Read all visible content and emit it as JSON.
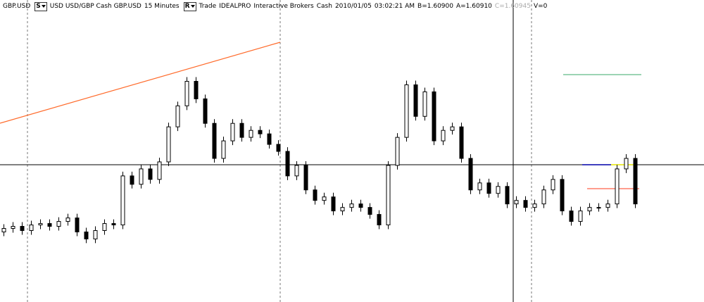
{
  "header": {
    "symbol": "GBP.USD",
    "side_button": "S",
    "description": "USD USD/GBP Cash GBP.USD",
    "interval": "15 Minutes",
    "route_button": "R",
    "mode": "Trade",
    "exchange": "IDEALPRO",
    "broker": "Interactive Brokers",
    "sec_type": "Cash",
    "date": "2010/01/05",
    "time": "03:02:21 AM",
    "bid": "B=1.60900",
    "ask": "A=1.60910",
    "close": "C=1.60945",
    "volume": "V=0"
  },
  "chart_data": {
    "type": "candlestick",
    "ylim": [
      1.6021,
      1.6229
    ],
    "up_color": "#ffffff",
    "down_color": "#000000",
    "open": [
      1.6071,
      1.60735,
      1.6075,
      1.6072,
      1.6076,
      1.6077,
      1.6075,
      1.60785,
      1.6081,
      1.6071,
      1.6066,
      1.6072,
      1.6077,
      1.6076,
      1.6111,
      1.6105,
      1.6116,
      1.61085,
      1.6121,
      1.6146,
      1.6161,
      1.61785,
      1.6166,
      1.61485,
      1.61235,
      1.6136,
      1.61485,
      1.61385,
      1.61435,
      1.6141,
      1.61335,
      1.61285,
      1.6111,
      1.61185,
      1.6101,
      1.60935,
      1.6096,
      1.6086,
      1.60885,
      1.6091,
      1.60885,
      1.60835,
      1.6076,
      1.61185,
      1.61385,
      1.6176,
      1.61535,
      1.6171,
      1.6136,
      1.61435,
      1.6146,
      1.61235,
      1.6101,
      1.6106,
      1.60985,
      1.61035,
      1.6091,
      1.60935,
      1.60885,
      1.6091,
      1.6101,
      1.61085,
      1.6086,
      1.60785,
      1.6086,
      1.60885,
      1.60885,
      1.6091,
      1.6116,
      1.61235
    ],
    "high": [
      1.60765,
      1.6078,
      1.6078,
      1.6079,
      1.608,
      1.608,
      1.60815,
      1.6084,
      1.6084,
      1.6074,
      1.6075,
      1.608,
      1.608,
      1.6114,
      1.6114,
      1.6119,
      1.6119,
      1.6124,
      1.6149,
      1.6164,
      1.61815,
      1.61815,
      1.6169,
      1.61515,
      1.6139,
      1.61515,
      1.61515,
      1.61465,
      1.61465,
      1.6144,
      1.61365,
      1.61315,
      1.61215,
      1.61215,
      1.6104,
      1.6099,
      1.6099,
      1.60915,
      1.6094,
      1.6094,
      1.60915,
      1.60865,
      1.61215,
      1.61415,
      1.6179,
      1.6179,
      1.6174,
      1.6174,
      1.61465,
      1.6149,
      1.6149,
      1.61265,
      1.6109,
      1.6109,
      1.61065,
      1.61065,
      1.60965,
      1.60965,
      1.6094,
      1.6104,
      1.61115,
      1.61115,
      1.6089,
      1.6089,
      1.60915,
      1.60915,
      1.6094,
      1.6119,
      1.61265,
      1.61265
    ],
    "low": [
      1.6068,
      1.60705,
      1.6069,
      1.6069,
      1.6073,
      1.6072,
      1.6072,
      1.60755,
      1.6068,
      1.6063,
      1.6063,
      1.6069,
      1.6073,
      1.6073,
      1.6102,
      1.6102,
      1.61055,
      1.61055,
      1.6118,
      1.6143,
      1.6158,
      1.6163,
      1.61455,
      1.61205,
      1.61205,
      1.6133,
      1.61355,
      1.61355,
      1.6138,
      1.61305,
      1.61255,
      1.6108,
      1.6108,
      1.6098,
      1.60905,
      1.60905,
      1.6083,
      1.6083,
      1.60855,
      1.60855,
      1.60805,
      1.6073,
      1.6073,
      1.61155,
      1.61355,
      1.61505,
      1.61505,
      1.6133,
      1.6133,
      1.61405,
      1.61205,
      1.6098,
      1.6098,
      1.60955,
      1.60955,
      1.6088,
      1.6088,
      1.60855,
      1.60855,
      1.6088,
      1.6098,
      1.6083,
      1.60755,
      1.60755,
      1.6083,
      1.60855,
      1.60855,
      1.6088,
      1.6113,
      1.6088
    ],
    "close": [
      1.60735,
      1.6075,
      1.6072,
      1.6076,
      1.6077,
      1.6075,
      1.60785,
      1.6081,
      1.6071,
      1.6066,
      1.6072,
      1.6077,
      1.6076,
      1.6111,
      1.6105,
      1.6116,
      1.61085,
      1.6121,
      1.6146,
      1.6161,
      1.61785,
      1.6166,
      1.61485,
      1.61235,
      1.6136,
      1.61485,
      1.61385,
      1.61435,
      1.6141,
      1.61335,
      1.61285,
      1.6111,
      1.61185,
      1.6101,
      1.60935,
      1.6096,
      1.6086,
      1.60885,
      1.6091,
      1.60885,
      1.60835,
      1.6076,
      1.61185,
      1.61385,
      1.6176,
      1.61535,
      1.6171,
      1.6136,
      1.61435,
      1.6146,
      1.61235,
      1.6101,
      1.6106,
      1.60985,
      1.61035,
      1.6091,
      1.60935,
      1.60885,
      1.6091,
      1.6101,
      1.61085,
      1.6086,
      1.60785,
      1.6086,
      1.60885,
      1.60885,
      1.6091,
      1.6116,
      1.61235,
      1.6091
    ]
  }
}
